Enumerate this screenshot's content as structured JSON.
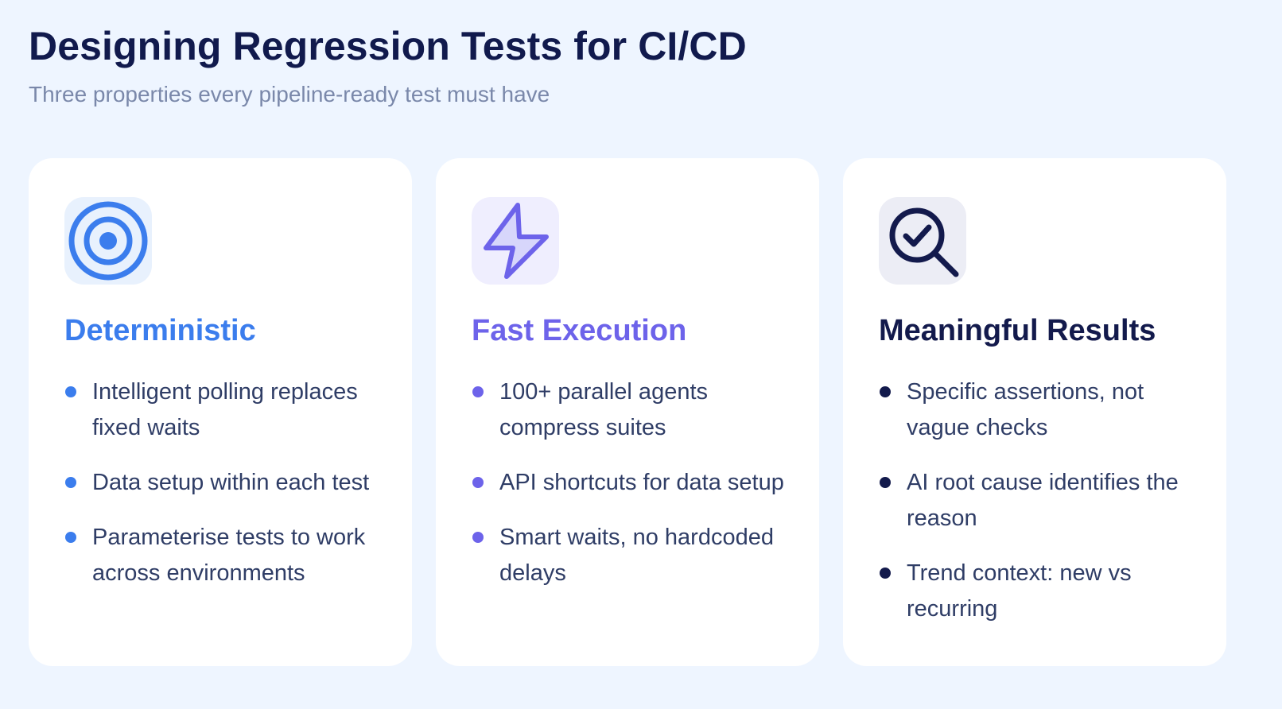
{
  "header": {
    "title": "Designing Regression Tests for CI/CD",
    "subtitle": "Three properties every pipeline-ready test must have"
  },
  "cards": [
    {
      "icon": "target-icon",
      "title": "Deterministic",
      "accent": "#3b7ded",
      "icon_bg": "#e8f1fd",
      "bullets": [
        "Intelligent polling replaces fixed waits",
        "Data setup within each test",
        "Parameterise tests to work across environments"
      ]
    },
    {
      "icon": "lightning-icon",
      "title": "Fast Execution",
      "accent": "#6d63ea",
      "icon_bg": "#efeefe",
      "bullets": [
        "100+ parallel agents compress suites",
        "API shortcuts for data setup",
        "Smart waits, no hardcoded delays"
      ]
    },
    {
      "icon": "magnifier-check-icon",
      "title": "Meaningful Results",
      "accent": "#131a4c",
      "icon_bg": "#ecedf5",
      "bullets": [
        "Specific assertions, not vague checks",
        "AI root cause identifies the reason",
        "Trend context: new vs recurring"
      ]
    }
  ],
  "colors": {
    "background": "#eef5ff",
    "title": "#111a4d",
    "subtitle": "#7a88aa",
    "body_text": "#2f3d66",
    "card": "#ffffff"
  }
}
